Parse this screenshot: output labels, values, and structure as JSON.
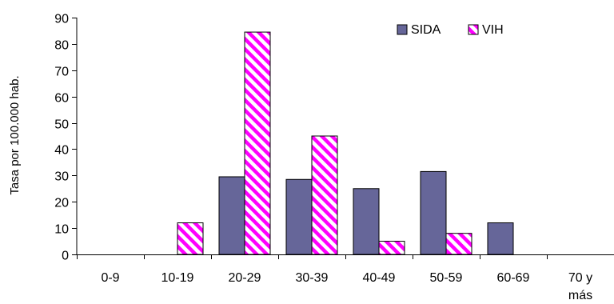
{
  "chart_data": {
    "type": "bar",
    "title": "",
    "xlabel": "",
    "ylabel": "Tasa por 100.000 hab.",
    "ylim": [
      0,
      90
    ],
    "yticks": [
      0,
      10,
      20,
      30,
      40,
      50,
      60,
      70,
      80,
      90
    ],
    "grid": false,
    "legend_position": "top-right",
    "categories": [
      "0-9",
      "10-19",
      "20-29",
      "30-39",
      "40-49",
      "50-59",
      "60-69",
      "70 y más"
    ],
    "series": [
      {
        "name": "SIDA",
        "color": "#666699",
        "pattern": "solid",
        "values": [
          0,
          0,
          29.5,
          28.5,
          25,
          31.5,
          12,
          0
        ]
      },
      {
        "name": "VIH",
        "color": "#ff00ff",
        "pattern": "diagonal-stripes",
        "values": [
          0,
          12,
          84.5,
          45,
          5,
          8,
          0,
          0
        ]
      }
    ]
  }
}
